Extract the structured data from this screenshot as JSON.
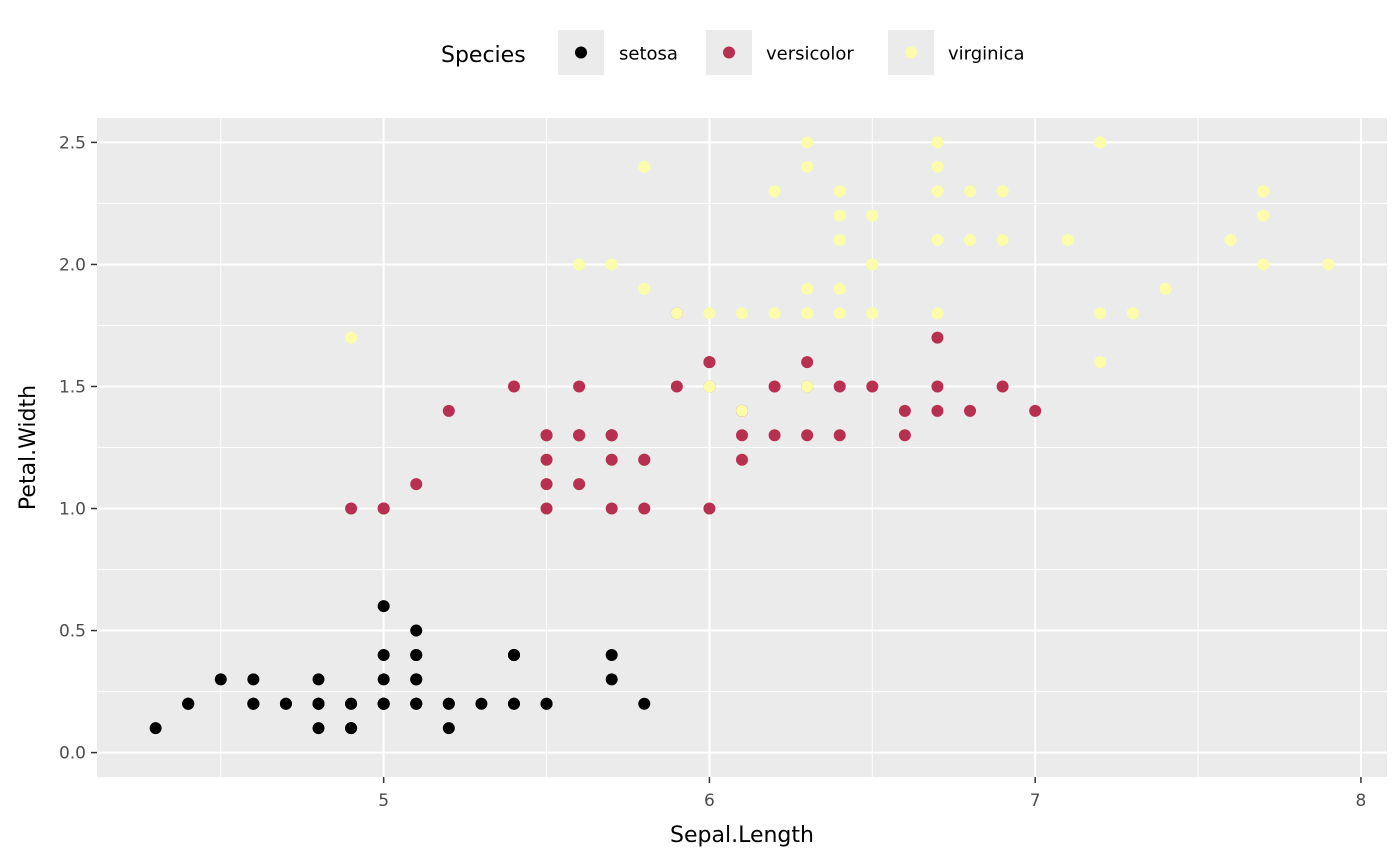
{
  "chart_data": {
    "type": "scatter",
    "xlabel": "Sepal.Length",
    "ylabel": "Petal.Width",
    "xlim": [
      4.12,
      8.08
    ],
    "ylim": [
      -0.1,
      2.6
    ],
    "x_ticks": [
      5,
      6,
      7,
      8
    ],
    "x_tick_labels": [
      "5",
      "6",
      "7",
      "8"
    ],
    "y_ticks": [
      0.0,
      0.5,
      1.0,
      1.5,
      2.0,
      2.5
    ],
    "y_tick_labels": [
      "0.0",
      "0.5",
      "1.0",
      "1.5",
      "2.0",
      "2.5"
    ],
    "grid": true,
    "panel_background": "#ebebeb",
    "legend": {
      "title": "Species",
      "position": "top"
    },
    "series": [
      {
        "name": "setosa",
        "color": "#000000",
        "points": [
          [
            5.1,
            0.2
          ],
          [
            4.9,
            0.2
          ],
          [
            4.7,
            0.2
          ],
          [
            4.6,
            0.2
          ],
          [
            5.0,
            0.2
          ],
          [
            5.4,
            0.4
          ],
          [
            4.6,
            0.3
          ],
          [
            5.0,
            0.2
          ],
          [
            4.4,
            0.2
          ],
          [
            4.9,
            0.1
          ],
          [
            5.4,
            0.2
          ],
          [
            4.8,
            0.2
          ],
          [
            4.8,
            0.1
          ],
          [
            4.3,
            0.1
          ],
          [
            5.8,
            0.2
          ],
          [
            5.7,
            0.4
          ],
          [
            5.4,
            0.4
          ],
          [
            5.1,
            0.3
          ],
          [
            5.7,
            0.3
          ],
          [
            5.1,
            0.3
          ],
          [
            5.4,
            0.2
          ],
          [
            5.1,
            0.4
          ],
          [
            4.6,
            0.2
          ],
          [
            5.1,
            0.5
          ],
          [
            4.8,
            0.2
          ],
          [
            5.0,
            0.2
          ],
          [
            5.0,
            0.4
          ],
          [
            5.2,
            0.2
          ],
          [
            5.2,
            0.2
          ],
          [
            4.7,
            0.2
          ],
          [
            4.8,
            0.2
          ],
          [
            5.4,
            0.4
          ],
          [
            5.2,
            0.1
          ],
          [
            5.5,
            0.2
          ],
          [
            4.9,
            0.2
          ],
          [
            5.0,
            0.2
          ],
          [
            5.5,
            0.2
          ],
          [
            4.9,
            0.1
          ],
          [
            4.4,
            0.2
          ],
          [
            5.1,
            0.2
          ],
          [
            5.0,
            0.3
          ],
          [
            4.5,
            0.3
          ],
          [
            4.4,
            0.2
          ],
          [
            5.0,
            0.6
          ],
          [
            5.1,
            0.4
          ],
          [
            4.8,
            0.3
          ],
          [
            5.1,
            0.2
          ],
          [
            4.6,
            0.2
          ],
          [
            5.3,
            0.2
          ],
          [
            5.0,
            0.2
          ]
        ]
      },
      {
        "name": "versicolor",
        "color": "#b8304f",
        "points": [
          [
            7.0,
            1.4
          ],
          [
            6.4,
            1.5
          ],
          [
            6.9,
            1.5
          ],
          [
            5.5,
            1.3
          ],
          [
            6.5,
            1.5
          ],
          [
            5.7,
            1.3
          ],
          [
            6.3,
            1.6
          ],
          [
            4.9,
            1.0
          ],
          [
            6.6,
            1.3
          ],
          [
            5.2,
            1.4
          ],
          [
            5.0,
            1.0
          ],
          [
            5.9,
            1.5
          ],
          [
            6.0,
            1.0
          ],
          [
            6.1,
            1.4
          ],
          [
            5.6,
            1.3
          ],
          [
            6.7,
            1.4
          ],
          [
            5.6,
            1.5
          ],
          [
            5.8,
            1.0
          ],
          [
            6.2,
            1.5
          ],
          [
            5.6,
            1.1
          ],
          [
            5.9,
            1.8
          ],
          [
            6.1,
            1.3
          ],
          [
            6.3,
            1.5
          ],
          [
            6.1,
            1.2
          ],
          [
            6.4,
            1.3
          ],
          [
            6.6,
            1.4
          ],
          [
            6.8,
            1.4
          ],
          [
            6.7,
            1.7
          ],
          [
            6.0,
            1.5
          ],
          [
            5.7,
            1.0
          ],
          [
            5.5,
            1.1
          ],
          [
            5.5,
            1.0
          ],
          [
            5.8,
            1.2
          ],
          [
            6.0,
            1.6
          ],
          [
            5.4,
            1.5
          ],
          [
            6.0,
            1.6
          ],
          [
            6.7,
            1.5
          ],
          [
            6.3,
            1.3
          ],
          [
            5.6,
            1.3
          ],
          [
            5.5,
            1.3
          ],
          [
            5.5,
            1.2
          ],
          [
            6.1,
            1.4
          ],
          [
            5.8,
            1.2
          ],
          [
            5.0,
            1.0
          ],
          [
            5.6,
            1.3
          ],
          [
            5.7,
            1.2
          ],
          [
            5.7,
            1.3
          ],
          [
            6.2,
            1.3
          ],
          [
            5.1,
            1.1
          ],
          [
            5.7,
            1.3
          ]
        ]
      },
      {
        "name": "virginica",
        "color": "#fcfdab",
        "points": [
          [
            6.3,
            2.5
          ],
          [
            5.8,
            1.9
          ],
          [
            7.1,
            2.1
          ],
          [
            6.3,
            1.8
          ],
          [
            6.5,
            2.2
          ],
          [
            7.6,
            2.1
          ],
          [
            4.9,
            1.7
          ],
          [
            7.3,
            1.8
          ],
          [
            6.7,
            1.8
          ],
          [
            7.2,
            2.5
          ],
          [
            6.5,
            2.0
          ],
          [
            6.4,
            1.9
          ],
          [
            6.8,
            2.1
          ],
          [
            5.7,
            2.0
          ],
          [
            5.8,
            2.4
          ],
          [
            6.4,
            2.3
          ],
          [
            6.5,
            1.8
          ],
          [
            7.7,
            2.2
          ],
          [
            7.7,
            2.3
          ],
          [
            6.0,
            1.5
          ],
          [
            6.9,
            2.3
          ],
          [
            5.6,
            2.0
          ],
          [
            7.7,
            2.0
          ],
          [
            6.3,
            1.8
          ],
          [
            6.7,
            2.1
          ],
          [
            7.2,
            1.8
          ],
          [
            6.2,
            1.8
          ],
          [
            6.1,
            1.8
          ],
          [
            6.4,
            2.1
          ],
          [
            7.2,
            1.6
          ],
          [
            7.4,
            1.9
          ],
          [
            7.9,
            2.0
          ],
          [
            6.4,
            2.2
          ],
          [
            6.3,
            1.5
          ],
          [
            6.1,
            1.4
          ],
          [
            7.7,
            2.3
          ],
          [
            6.3,
            2.4
          ],
          [
            6.4,
            1.8
          ],
          [
            6.0,
            1.8
          ],
          [
            6.9,
            2.1
          ],
          [
            6.7,
            2.4
          ],
          [
            6.9,
            2.3
          ],
          [
            5.8,
            1.9
          ],
          [
            6.8,
            2.3
          ],
          [
            6.7,
            2.5
          ],
          [
            6.7,
            2.3
          ],
          [
            6.3,
            1.9
          ],
          [
            6.5,
            2.0
          ],
          [
            6.2,
            2.3
          ],
          [
            5.9,
            1.8
          ]
        ]
      }
    ]
  }
}
